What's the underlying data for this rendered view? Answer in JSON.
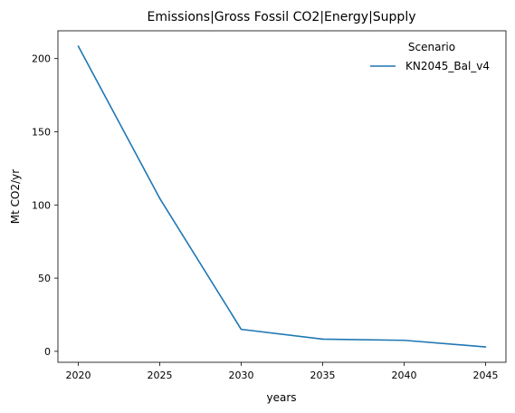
{
  "chart_data": {
    "type": "line",
    "title": "Emissions|Gross Fossil CO2|Energy|Supply",
    "xlabel": "years",
    "ylabel": "Mt CO2/yr",
    "x": [
      2020,
      2025,
      2030,
      2035,
      2040,
      2045
    ],
    "series": [
      {
        "name": "KN2045_Bal_v4",
        "color": "#1f77b4",
        "values": [
          208.5,
          104.5,
          15.0,
          8.3,
          7.5,
          3.0
        ]
      }
    ],
    "xticks": [
      "2020",
      "2025",
      "2030",
      "2035",
      "2040",
      "2045"
    ],
    "yticks": [
      "0",
      "50",
      "100",
      "150",
      "200"
    ],
    "xlim": [
      2018.75,
      2046.25
    ],
    "ylim": [
      -7.5,
      219
    ],
    "legend": {
      "title": "Scenario",
      "position": "top-right"
    },
    "grid": false
  }
}
